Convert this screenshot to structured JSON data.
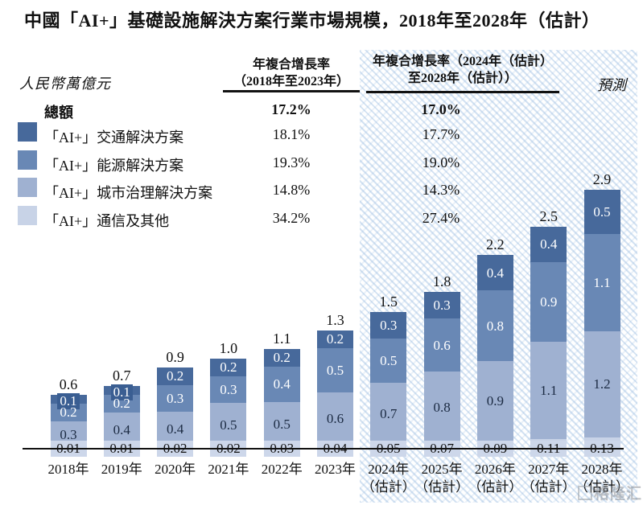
{
  "title": "中國「AI+」基礎設施解決方案行業市場規模，2018年至2028年（估計）",
  "unit_label": "人民幣萬億元",
  "forecast_label": "預測",
  "watermark_text": "格隆汇",
  "colors": {
    "bar_transport": "#47699b",
    "bar_transport_label_box": "#3a5e92",
    "bar_energy": "#6988b5",
    "bar_city": "#9fb1d1",
    "bar_comms": "#c8d3e7",
    "bottom_label_box": "#cdd7ea",
    "forecast_hatch": "#97bae0",
    "axis": "#111111"
  },
  "cagr_table": {
    "col1_header_line1": "年複合增長率",
    "col1_header_line2": "（2018年至2023年）",
    "col2_header_line1": "年複合增長率（2024年（估計）",
    "col2_header_line2": "至2028年（估計））",
    "rows": [
      {
        "label": "總額",
        "cagr_2018_2023": "17.2%",
        "cagr_2024_2028": "17.0%"
      },
      {
        "label": "「AI+」交通解決方案",
        "cagr_2018_2023": "18.1%",
        "cagr_2024_2028": "17.7%"
      },
      {
        "label": "「AI+」能源解決方案",
        "cagr_2018_2023": "19.3%",
        "cagr_2024_2028": "19.0%"
      },
      {
        "label": "「AI+」城市治理解決方案",
        "cagr_2018_2023": "14.8%",
        "cagr_2024_2028": "14.3%"
      },
      {
        "label": "「AI+」通信及其他",
        "cagr_2018_2023": "34.2%",
        "cagr_2024_2028": "27.4%"
      }
    ]
  },
  "chart_data": {
    "type": "bar",
    "stacked": true,
    "title": "中國「AI+」基礎設施解決方案行業市場規模，2018年至2028年（估計）",
    "ylabel": "人民幣萬億元",
    "ylim": [
      0,
      3.0
    ],
    "grid": false,
    "legend_position": "top-left",
    "categories": [
      "2018年",
      "2019年",
      "2020年",
      "2021年",
      "2022年",
      "2023年",
      "2024年",
      "2025年",
      "2026年",
      "2027年",
      "2028年"
    ],
    "category_sublabels": [
      "",
      "",
      "",
      "",
      "",
      "",
      "（估計）",
      "（估計）",
      "（估計）",
      "（估計）",
      "（估計）"
    ],
    "forecast_start_index": 6,
    "totals": [
      0.6,
      0.7,
      0.9,
      1.0,
      1.1,
      1.3,
      1.5,
      1.8,
      2.2,
      2.5,
      2.9
    ],
    "total_labels": [
      "0.6",
      "0.7",
      "0.9",
      "1.0",
      "1.1",
      "1.3",
      "1.5",
      "1.8",
      "2.2",
      "2.5",
      "2.9"
    ],
    "series": [
      {
        "name": "「AI+」交通解決方案",
        "color": "#47699b",
        "text_color": "#ffffff",
        "values": [
          0.1,
          0.1,
          0.2,
          0.2,
          0.2,
          0.2,
          0.3,
          0.3,
          0.4,
          0.4,
          0.5
        ],
        "value_labels": [
          "0.1",
          "0.1",
          "0.2",
          "0.2",
          "0.2",
          "0.2",
          "0.3",
          "0.3",
          "0.4",
          "0.4",
          "0.5"
        ],
        "cagr_2018_2023": "18.1%",
        "cagr_2024_2028": "17.7%"
      },
      {
        "name": "「AI+」能源解決方案",
        "color": "#6988b5",
        "text_color": "#ffffff",
        "values": [
          0.2,
          0.2,
          0.3,
          0.3,
          0.4,
          0.5,
          0.5,
          0.6,
          0.8,
          0.9,
          1.1
        ],
        "value_labels": [
          "0.2",
          "0.2",
          "0.3",
          "0.3",
          "0.4",
          "0.5",
          "0.5",
          "0.6",
          "0.8",
          "0.9",
          "1.1"
        ],
        "cagr_2018_2023": "19.3%",
        "cagr_2024_2028": "19.0%"
      },
      {
        "name": "「AI+」城市治理解決方案",
        "color": "#9fb1d1",
        "text_color": "#1b2a42",
        "values": [
          0.3,
          0.4,
          0.4,
          0.5,
          0.5,
          0.6,
          0.7,
          0.8,
          0.9,
          1.1,
          1.2
        ],
        "value_labels": [
          "0.3",
          "0.4",
          "0.4",
          "0.5",
          "0.5",
          "0.6",
          "0.7",
          "0.8",
          "0.9",
          "1.1",
          "1.2"
        ],
        "cagr_2018_2023": "14.8%",
        "cagr_2024_2028": "14.3%"
      },
      {
        "name": "「AI+」通信及其他",
        "color": "#c8d3e7",
        "text_color": "#111111",
        "values": [
          0.01,
          0.01,
          0.02,
          0.02,
          0.03,
          0.04,
          0.05,
          0.07,
          0.09,
          0.11,
          0.13
        ],
        "value_labels": [
          "0.01",
          "0.01",
          "0.02",
          "0.02",
          "0.03",
          "0.04",
          "0.05",
          "0.07",
          "0.09",
          "0.11",
          "0.13"
        ],
        "cagr_2018_2023": "34.2%",
        "cagr_2024_2028": "27.4%"
      }
    ]
  }
}
